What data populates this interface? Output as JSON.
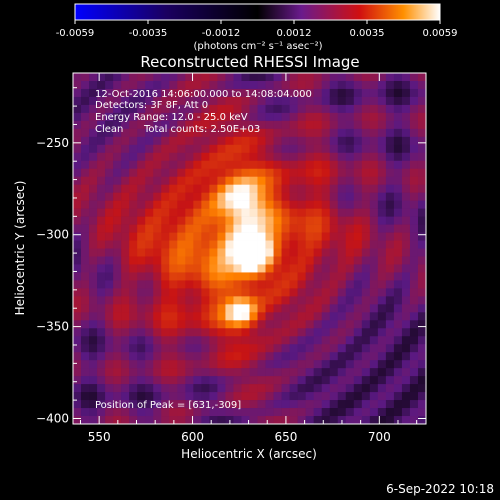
{
  "chart_data": {
    "type": "heatmap",
    "title": "Reconstructed RHESSI Image",
    "xlabel": "Heliocentric X (arcsec)",
    "ylabel": "Heliocentric Y (arcsec)",
    "xlim": [
      536,
      725
    ],
    "ylim": [
      -403,
      -212
    ],
    "xticks": [
      550,
      600,
      650,
      700
    ],
    "yticks": [
      -250,
      -300,
      -350,
      -400
    ],
    "annotations": [
      "12-Oct-2016 14:06:00.000 to 14:08:04.000",
      "Detectors: 3F 8F, Att 0",
      "Energy Range: 12.0 - 25.0 keV",
      "Clean",
      "Total counts: 2.50E+03"
    ],
    "peak_label": "Position of Peak = [631,-309]",
    "peak": {
      "x": 631,
      "y": -309
    },
    "secondary_sources": [
      {
        "x": 626,
        "y": -342
      },
      {
        "x": 626,
        "y": -282
      }
    ],
    "colorbar": {
      "ticks": [
        "-0.0059",
        "-0.0035",
        "-0.0012",
        "0.0012",
        "0.0035",
        "0.0059"
      ],
      "unit_label": "(photons cm⁻² s⁻¹ asec⁻²)",
      "min": -0.0059,
      "max": 0.0059
    },
    "colors": {
      "negative": "#0000ff",
      "zero": "#000000",
      "low_positive": "#6a1a8c",
      "mid": "#c81010",
      "high": "#ff8000",
      "max": "#ffffff"
    }
  },
  "footer": {
    "timestamp": "6-Sep-2022 10:18"
  }
}
